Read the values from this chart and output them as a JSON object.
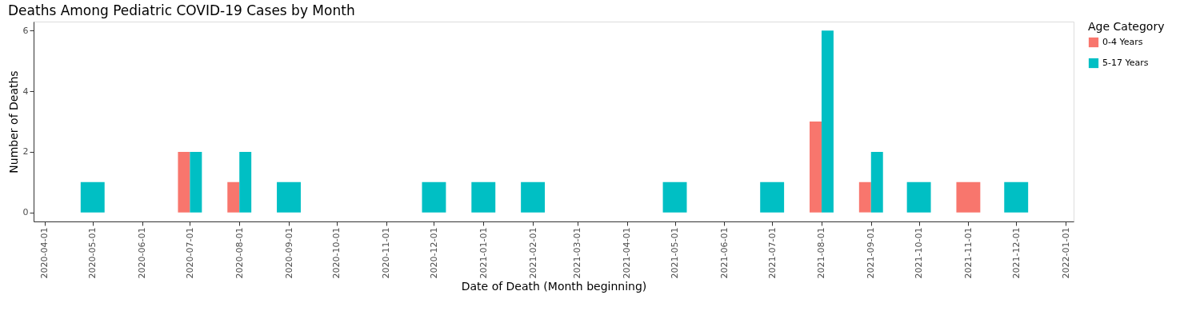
{
  "chart_data": {
    "type": "bar",
    "title": "Deaths Among Pediatric COVID-19 Cases by Month",
    "xlabel": "Date of Death (Month beginning)",
    "ylabel": "Number of Deaths",
    "legend_title": "Age Category",
    "x": [
      "2020-05",
      "2020-07",
      "2020-08",
      "2020-09",
      "2020-12",
      "2021-01",
      "2021-02",
      "2021-05",
      "2021-07",
      "2021-08",
      "2021-09",
      "2021-10",
      "2021-11",
      "2021-12"
    ],
    "series": [
      {
        "name": "0-4 Years",
        "color": "#f8766d",
        "values": [
          null,
          2,
          1,
          null,
          null,
          null,
          null,
          null,
          null,
          3,
          1,
          null,
          1,
          null
        ]
      },
      {
        "name": "5-17 Years",
        "color": "#00bfc4",
        "values": [
          1,
          2,
          2,
          1,
          1,
          1,
          1,
          1,
          1,
          6,
          2,
          1,
          null,
          1
        ]
      }
    ],
    "xlim": [
      "2020-03-25",
      "2022-01-06"
    ],
    "xticks": [
      "2020-04-01",
      "2020-05-01",
      "2020-06-01",
      "2020-07-01",
      "2020-08-01",
      "2020-09-01",
      "2020-10-01",
      "2020-11-01",
      "2020-12-01",
      "2021-01-01",
      "2021-02-01",
      "2021-03-01",
      "2021-04-01",
      "2021-05-01",
      "2021-06-01",
      "2021-07-01",
      "2021-08-01",
      "2021-09-01",
      "2021-10-01",
      "2021-11-01",
      "2021-12-01",
      "2022-01-01"
    ],
    "ylim": [
      -0.3,
      6.3
    ],
    "yticks": [
      0,
      2,
      4,
      6
    ],
    "grid": false,
    "legend": "top right"
  }
}
